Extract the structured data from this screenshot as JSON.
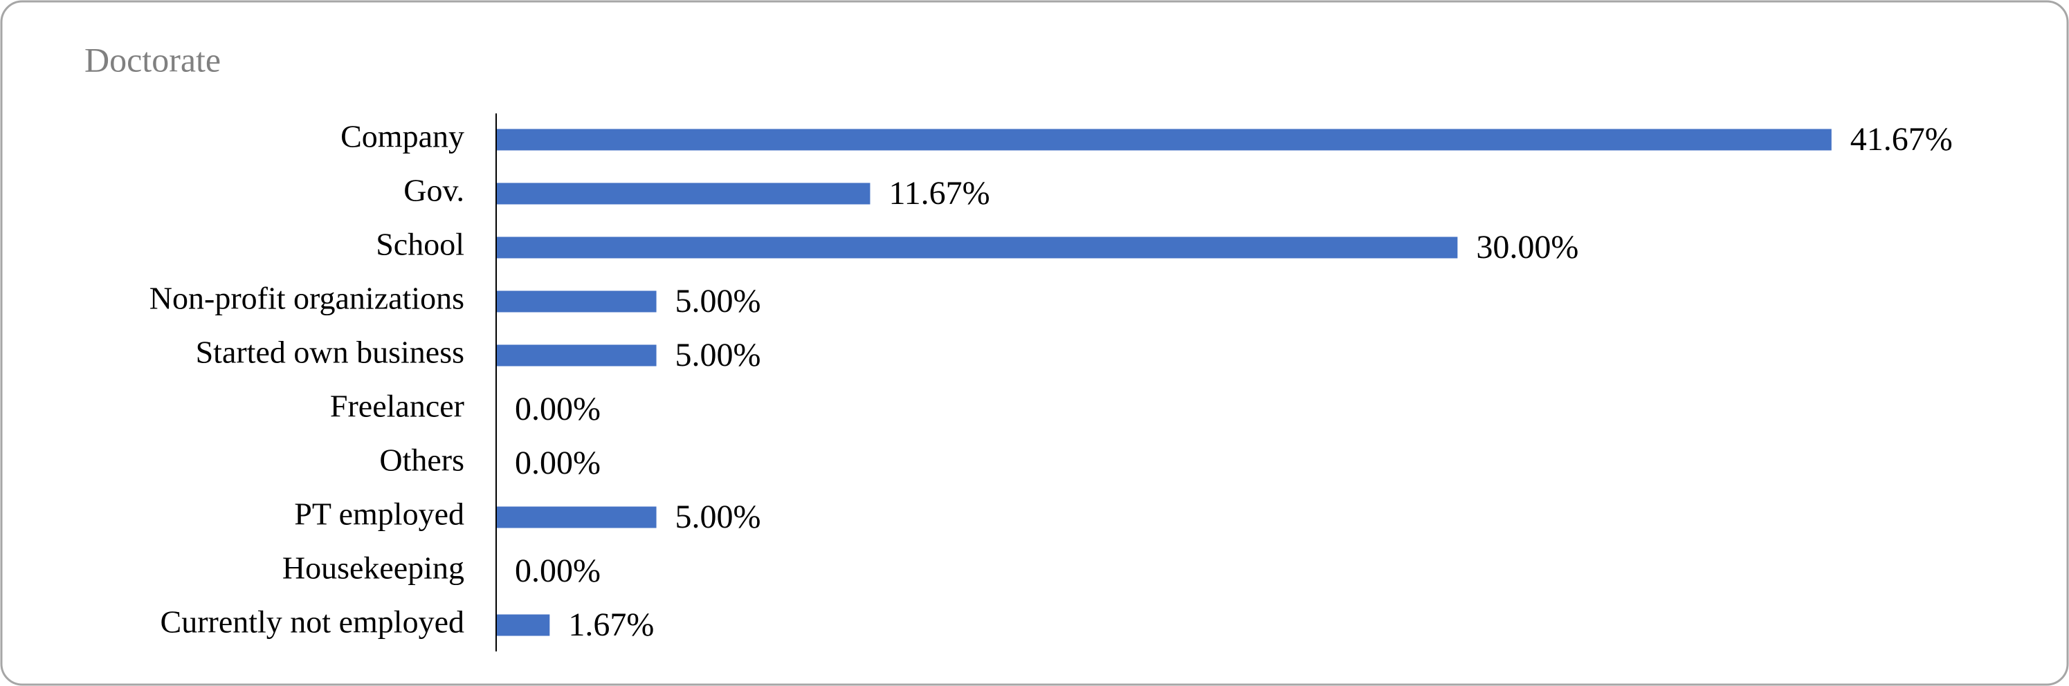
{
  "chart_data": {
    "type": "hbar",
    "title": "Doctorate",
    "categories": [
      "Company",
      "Gov.",
      "School",
      "Non-profit organizations",
      "Started own business",
      "Freelancer",
      "Others",
      "PT employed",
      "Housekeeping",
      "Currently not employed"
    ],
    "values": [
      41.67,
      11.67,
      30.0,
      5.0,
      5.0,
      0.0,
      0.0,
      5.0,
      0.0,
      1.67
    ],
    "value_labels": [
      "41.67%",
      "11.67%",
      "30.00%",
      "5.00%",
      "5.00%",
      "0.00%",
      "0.00%",
      "5.00%",
      "0.00%",
      "1.67%"
    ],
    "color": "#4472c4",
    "xlim": [
      0,
      45
    ]
  }
}
